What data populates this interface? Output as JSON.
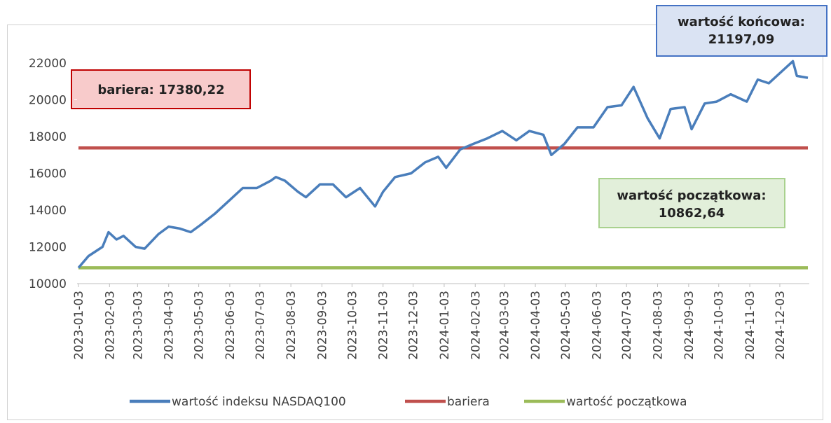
{
  "chart_data": {
    "type": "line",
    "xlim": [
      "2023-01-03",
      "2024-12-31"
    ],
    "xticks": [
      "2023-01-03",
      "2023-02-03",
      "2023-03-03",
      "2023-04-03",
      "2023-05-03",
      "2023-06-03",
      "2023-07-03",
      "2023-08-03",
      "2023-09-03",
      "2023-10-03",
      "2023-11-03",
      "2023-12-03",
      "2024-01-03",
      "2024-02-03",
      "2024-03-03",
      "2024-04-03",
      "2024-05-03",
      "2024-06-03",
      "2024-07-03",
      "2024-08-03",
      "2024-09-03",
      "2024-10-03",
      "2024-11-03",
      "2024-12-03"
    ],
    "ylim": [
      10000,
      22000
    ],
    "yticks": [
      10000,
      12000,
      14000,
      16000,
      18000,
      20000,
      22000
    ],
    "series": [
      {
        "name": "wartość indeksu NASDAQ100",
        "color": "#4a7ebb",
        "x": [
          "2023-01-03",
          "2023-01-13",
          "2023-01-27",
          "2023-02-02",
          "2023-02-10",
          "2023-02-17",
          "2023-03-01",
          "2023-03-10",
          "2023-03-17",
          "2023-03-24",
          "2023-04-03",
          "2023-04-14",
          "2023-04-25",
          "2023-05-05",
          "2023-05-19",
          "2023-06-02",
          "2023-06-16",
          "2023-06-30",
          "2023-07-14",
          "2023-07-19",
          "2023-07-28",
          "2023-08-10",
          "2023-08-18",
          "2023-09-01",
          "2023-09-14",
          "2023-09-27",
          "2023-10-11",
          "2023-10-26",
          "2023-11-03",
          "2023-11-15",
          "2023-12-01",
          "2023-12-15",
          "2023-12-28",
          "2024-01-05",
          "2024-01-19",
          "2024-02-01",
          "2024-02-15",
          "2024-03-01",
          "2024-03-15",
          "2024-03-28",
          "2024-04-11",
          "2024-04-19",
          "2024-05-02",
          "2024-05-15",
          "2024-05-31",
          "2024-06-14",
          "2024-06-28",
          "2024-07-10",
          "2024-07-24",
          "2024-08-05",
          "2024-08-16",
          "2024-08-30",
          "2024-09-06",
          "2024-09-19",
          "2024-10-01",
          "2024-10-15",
          "2024-10-31",
          "2024-11-11",
          "2024-11-22",
          "2024-12-06",
          "2024-12-16",
          "2024-12-20",
          "2024-12-31"
        ],
        "values": [
          10862,
          11500,
          12000,
          12800,
          12400,
          12600,
          12000,
          11900,
          12300,
          12700,
          13100,
          13000,
          12800,
          13200,
          13800,
          14500,
          15200,
          15200,
          15600,
          15800,
          15600,
          15000,
          14700,
          15400,
          15400,
          14700,
          15200,
          14200,
          15000,
          15800,
          16000,
          16600,
          16900,
          16300,
          17300,
          17600,
          17900,
          18300,
          17800,
          18300,
          18100,
          17000,
          17600,
          18500,
          18500,
          19600,
          19700,
          20700,
          19000,
          17900,
          19500,
          19600,
          18400,
          19800,
          19900,
          20300,
          19900,
          21100,
          20900,
          21600,
          22100,
          21300,
          21197
        ]
      },
      {
        "name": "bariera",
        "color": "#c0504d",
        "x": [
          "2023-01-03",
          "2024-12-31"
        ],
        "values": [
          17380.22,
          17380.22
        ]
      },
      {
        "name": "wartość początkowa",
        "color": "#9bbb59",
        "x": [
          "2023-01-03",
          "2024-12-31"
        ],
        "values": [
          10862.64,
          10862.64
        ]
      }
    ],
    "annotations": [
      {
        "lines": [
          "wartość końcowa:",
          "21197,09"
        ]
      },
      {
        "lines": [
          "bariera: 17380,22"
        ]
      },
      {
        "lines": [
          "wartość początkowa:",
          "10862,64"
        ]
      }
    ]
  }
}
